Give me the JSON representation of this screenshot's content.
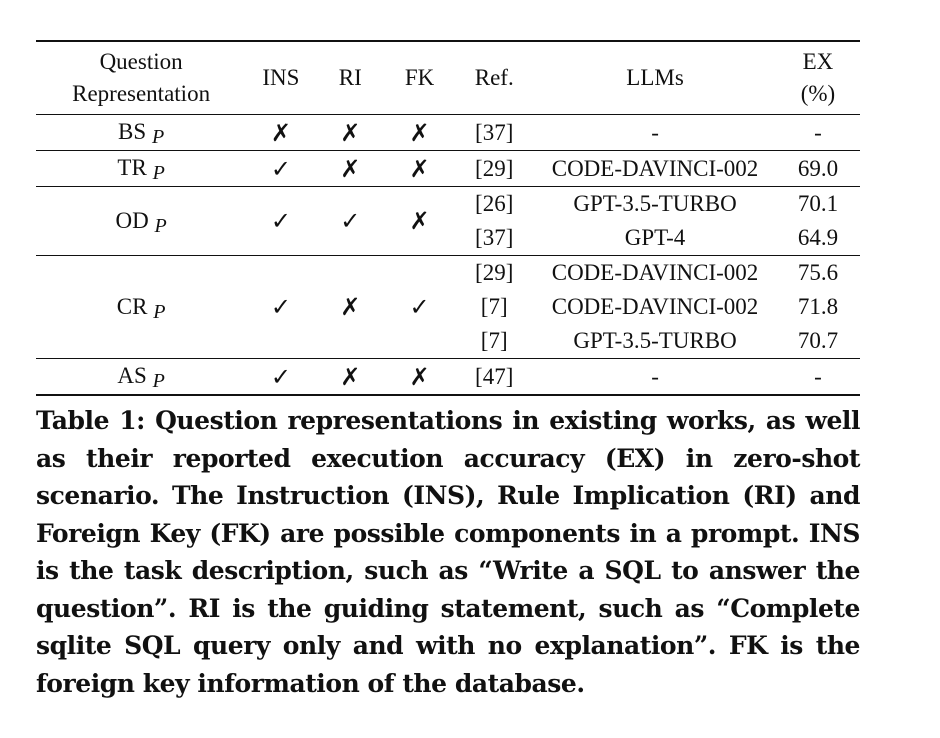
{
  "table": {
    "headers": {
      "question_line1": "Question",
      "question_line2": "Representation",
      "ins": "INS",
      "ri": "RI",
      "fk": "FK",
      "ref": "Ref.",
      "llms": "LLMs",
      "ex_line1": "EX",
      "ex_line2": "(%)"
    },
    "groups": [
      {
        "rep": "BS",
        "sub": "P",
        "ins": "✗",
        "ri": "✗",
        "fk": "✗",
        "entries": [
          {
            "ref": "[37]",
            "llm": "-",
            "ex": "-"
          }
        ]
      },
      {
        "rep": "TR",
        "sub": "P",
        "ins": "✓",
        "ri": "✗",
        "fk": "✗",
        "entries": [
          {
            "ref": "[29]",
            "llm": "CODE-DAVINCI-002",
            "ex": "69.0"
          }
        ]
      },
      {
        "rep": "OD",
        "sub": "P",
        "ins": "✓",
        "ri": "✓",
        "fk": "✗",
        "entries": [
          {
            "ref": "[26]",
            "llm": "GPT-3.5-TURBO",
            "ex": "70.1"
          },
          {
            "ref": "[37]",
            "llm": "GPT-4",
            "ex": "64.9"
          }
        ]
      },
      {
        "rep": "CR",
        "sub": "P",
        "ins": "✓",
        "ri": "✗",
        "fk": "✓",
        "entries": [
          {
            "ref": "[29]",
            "llm": "CODE-DAVINCI-002",
            "ex": "75.6"
          },
          {
            "ref": "[7]",
            "llm": "CODE-DAVINCI-002",
            "ex": "71.8"
          },
          {
            "ref": "[7]",
            "llm": "GPT-3.5-TURBO",
            "ex": "70.7"
          }
        ]
      },
      {
        "rep": "AS",
        "sub": "P",
        "ins": "✓",
        "ri": "✗",
        "fk": "✗",
        "entries": [
          {
            "ref": "[47]",
            "llm": "-",
            "ex": "-"
          }
        ]
      }
    ]
  },
  "caption": "Table 1: Question representations in existing works, as well as their reported execution accuracy (EX) in zero-shot scenario. The Instruction (INS), Rule Implication (RI) and Foreign Key (FK) are possible components in a prompt. INS is the task description, such as “Write a SQL to answer the question”. RI is the guiding statement, such as “Complete sqlite SQL query only and with no explanation”. FK is the foreign key information of the database."
}
